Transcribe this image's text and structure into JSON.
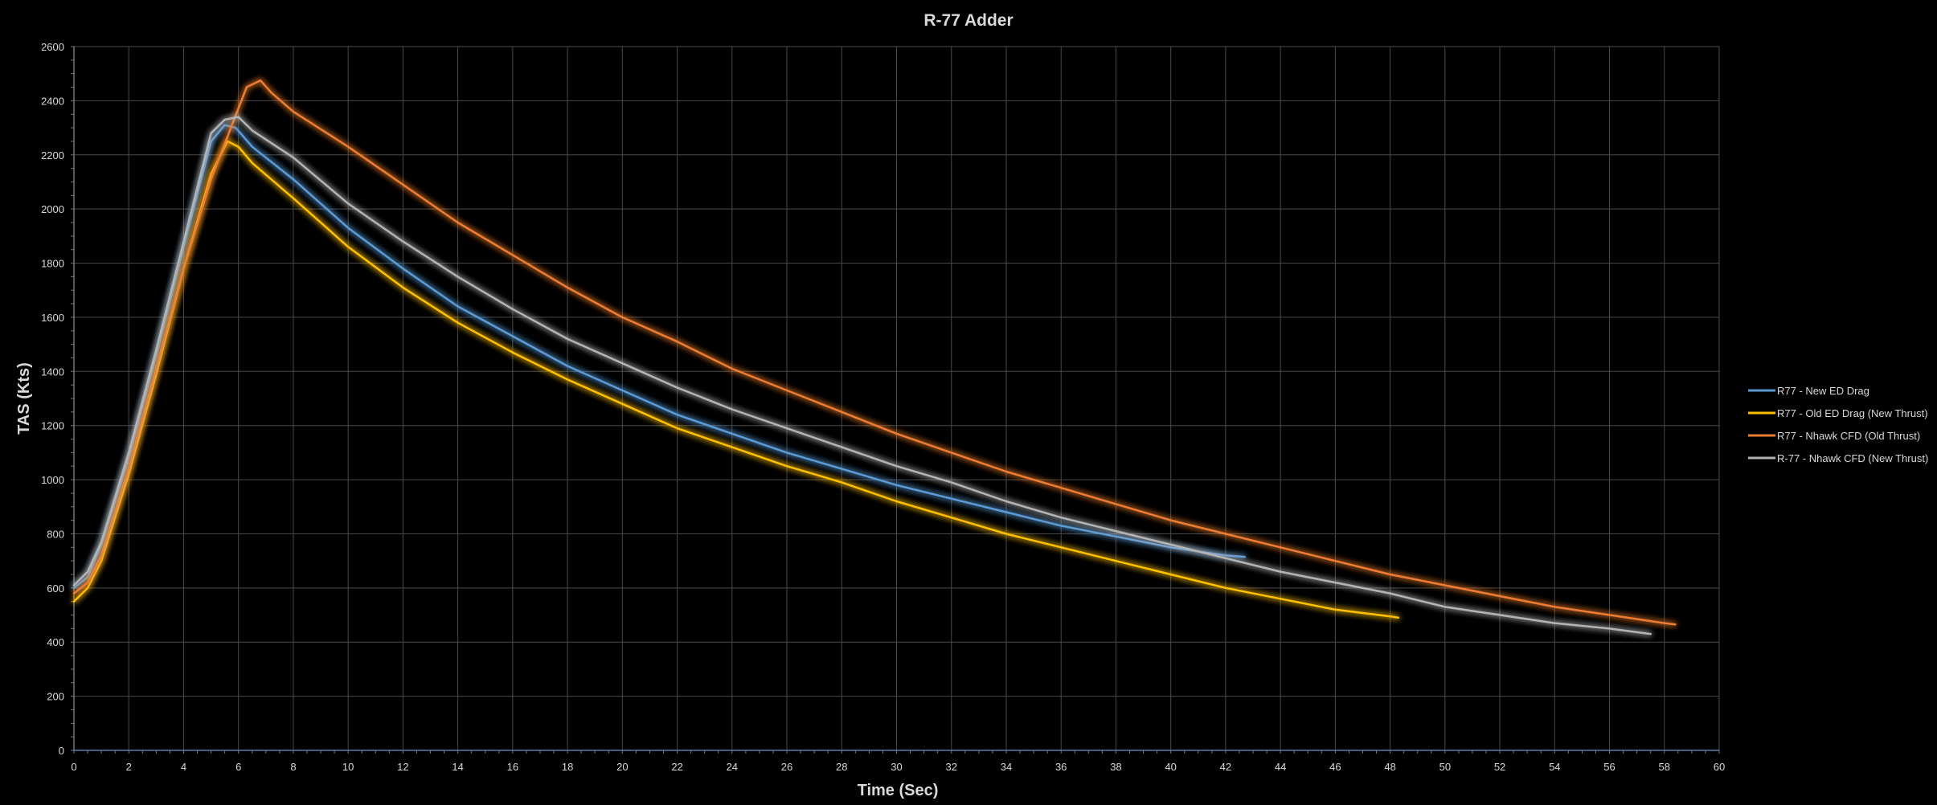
{
  "chart_data": {
    "type": "line",
    "title": "R-77 Adder",
    "xlabel": "Time (Sec)",
    "ylabel": "TAS (Kts)",
    "xlim": [
      0,
      60
    ],
    "ylim": [
      0,
      2600
    ],
    "x_ticks": [
      "0",
      "2",
      "4",
      "6",
      "8",
      "10",
      "12",
      "14",
      "16",
      "18",
      "20",
      "22",
      "24",
      "26",
      "28",
      "30",
      "32",
      "34",
      "36",
      "38",
      "40",
      "42",
      "44",
      "46",
      "48",
      "50",
      "52",
      "54",
      "56",
      "58",
      "60"
    ],
    "y_ticks": [
      "0",
      "200",
      "400",
      "600",
      "800",
      "1000",
      "1200",
      "1400",
      "1600",
      "1800",
      "2000",
      "2200",
      "2400",
      "2600"
    ],
    "grid": true,
    "legend_position": "right",
    "series": [
      {
        "name": "R77 - New ED Drag",
        "color": "#5b9bd5",
        "points": [
          [
            0,
            600
          ],
          [
            0.5,
            640
          ],
          [
            1,
            760
          ],
          [
            2,
            1080
          ],
          [
            3,
            1460
          ],
          [
            4,
            1860
          ],
          [
            5,
            2250
          ],
          [
            5.5,
            2310
          ],
          [
            5.9,
            2300
          ],
          [
            6.5,
            2230
          ],
          [
            8,
            2110
          ],
          [
            10,
            1930
          ],
          [
            12,
            1780
          ],
          [
            14,
            1640
          ],
          [
            16,
            1530
          ],
          [
            18,
            1420
          ],
          [
            20,
            1330
          ],
          [
            22,
            1240
          ],
          [
            24,
            1170
          ],
          [
            26,
            1100
          ],
          [
            28,
            1040
          ],
          [
            30,
            980
          ],
          [
            32,
            930
          ],
          [
            34,
            880
          ],
          [
            36,
            830
          ],
          [
            38,
            790
          ],
          [
            40,
            750
          ],
          [
            42,
            720
          ],
          [
            42.7,
            715
          ]
        ]
      },
      {
        "name": "R77 - Old ED Drag (New Thrust)",
        "color": "#ffc000",
        "points": [
          [
            0,
            550
          ],
          [
            0.5,
            600
          ],
          [
            1,
            700
          ],
          [
            2,
            1020
          ],
          [
            3,
            1390
          ],
          [
            4,
            1780
          ],
          [
            5,
            2130
          ],
          [
            5.6,
            2250
          ],
          [
            6,
            2230
          ],
          [
            6.5,
            2170
          ],
          [
            8,
            2040
          ],
          [
            10,
            1860
          ],
          [
            12,
            1710
          ],
          [
            14,
            1580
          ],
          [
            16,
            1470
          ],
          [
            18,
            1370
          ],
          [
            20,
            1280
          ],
          [
            22,
            1190
          ],
          [
            24,
            1120
          ],
          [
            26,
            1050
          ],
          [
            28,
            990
          ],
          [
            30,
            920
          ],
          [
            32,
            860
          ],
          [
            34,
            800
          ],
          [
            36,
            750
          ],
          [
            38,
            700
          ],
          [
            40,
            650
          ],
          [
            42,
            600
          ],
          [
            44,
            560
          ],
          [
            46,
            520
          ],
          [
            48,
            495
          ],
          [
            48.3,
            490
          ]
        ]
      },
      {
        "name": "R77 - Nhawk CFD (Old Thrust)",
        "color": "#ed7d31",
        "points": [
          [
            0,
            580
          ],
          [
            0.5,
            620
          ],
          [
            1,
            720
          ],
          [
            2,
            1040
          ],
          [
            3,
            1410
          ],
          [
            4,
            1780
          ],
          [
            5,
            2110
          ],
          [
            5.8,
            2320
          ],
          [
            6.3,
            2450
          ],
          [
            6.8,
            2475
          ],
          [
            7.2,
            2430
          ],
          [
            8,
            2360
          ],
          [
            10,
            2230
          ],
          [
            12,
            2090
          ],
          [
            14,
            1950
          ],
          [
            16,
            1830
          ],
          [
            18,
            1710
          ],
          [
            20,
            1600
          ],
          [
            22,
            1510
          ],
          [
            24,
            1410
          ],
          [
            26,
            1330
          ],
          [
            28,
            1250
          ],
          [
            30,
            1170
          ],
          [
            32,
            1100
          ],
          [
            34,
            1030
          ],
          [
            36,
            970
          ],
          [
            38,
            910
          ],
          [
            40,
            850
          ],
          [
            42,
            800
          ],
          [
            44,
            750
          ],
          [
            46,
            700
          ],
          [
            48,
            650
          ],
          [
            50,
            610
          ],
          [
            52,
            570
          ],
          [
            54,
            530
          ],
          [
            56,
            500
          ],
          [
            58,
            470
          ],
          [
            58.4,
            465
          ]
        ]
      },
      {
        "name": "R-77 - Nhawk CFD (New Thrust)",
        "color": "#b4b4b4",
        "points": [
          [
            0,
            610
          ],
          [
            0.5,
            660
          ],
          [
            1,
            770
          ],
          [
            2,
            1100
          ],
          [
            3,
            1480
          ],
          [
            4,
            1880
          ],
          [
            5,
            2280
          ],
          [
            5.5,
            2330
          ],
          [
            6,
            2340
          ],
          [
            6.5,
            2290
          ],
          [
            8,
            2190
          ],
          [
            10,
            2020
          ],
          [
            12,
            1880
          ],
          [
            14,
            1750
          ],
          [
            16,
            1630
          ],
          [
            18,
            1520
          ],
          [
            20,
            1430
          ],
          [
            22,
            1340
          ],
          [
            24,
            1260
          ],
          [
            26,
            1190
          ],
          [
            28,
            1120
          ],
          [
            30,
            1050
          ],
          [
            32,
            990
          ],
          [
            34,
            920
          ],
          [
            36,
            860
          ],
          [
            38,
            810
          ],
          [
            40,
            760
          ],
          [
            42,
            710
          ],
          [
            44,
            660
          ],
          [
            46,
            620
          ],
          [
            48,
            580
          ],
          [
            50,
            530
          ],
          [
            52,
            500
          ],
          [
            54,
            470
          ],
          [
            56,
            450
          ],
          [
            57.5,
            430
          ]
        ]
      }
    ]
  }
}
